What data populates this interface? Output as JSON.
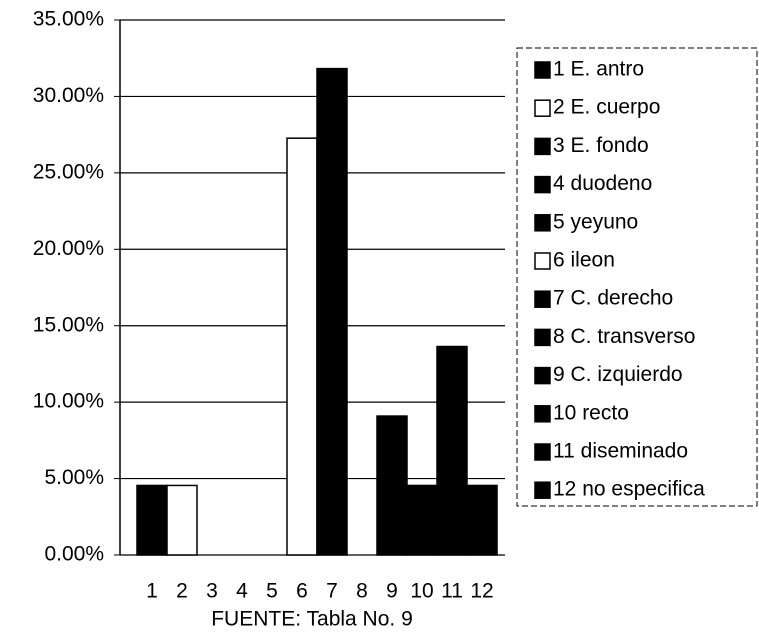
{
  "chart_data": {
    "type": "bar",
    "categories": [
      "1",
      "2",
      "3",
      "4",
      "5",
      "6",
      "7",
      "8",
      "9",
      "10",
      "11",
      "12"
    ],
    "values": [
      4.55,
      4.55,
      0,
      0,
      0,
      27.27,
      31.82,
      0,
      9.09,
      4.55,
      13.64,
      4.55
    ],
    "colors": [
      "#000000",
      "#ffffff",
      "#000000",
      "#000000",
      "#000000",
      "#ffffff",
      "#000000",
      "#000000",
      "#000000",
      "#000000",
      "#000000",
      "#000000"
    ],
    "legend": [
      "1 E. antro",
      "2 E. cuerpo",
      "3 E. fondo",
      "4 duodeno",
      "5 yeyuno",
      "6 ileon",
      "7 C. derecho",
      "8 C. transverso",
      "9 C. izquierdo",
      "10  recto",
      "11  diseminado",
      "12 no especifica"
    ],
    "x_label": "FUENTE: Tabla No. 9",
    "ylim": [
      0,
      35
    ],
    "yticks": [
      {
        "value": 0,
        "label": "0.00%"
      },
      {
        "value": 5,
        "label": "5.00%"
      },
      {
        "value": 10,
        "label": "10.00%"
      },
      {
        "value": 15,
        "label": "15.00%"
      },
      {
        "value": 20,
        "label": "20.00%"
      },
      {
        "value": 25,
        "label": "25.00%"
      },
      {
        "value": 30,
        "label": "30.00%"
      },
      {
        "value": 35,
        "label": "35.00%"
      }
    ],
    "grid": true
  }
}
